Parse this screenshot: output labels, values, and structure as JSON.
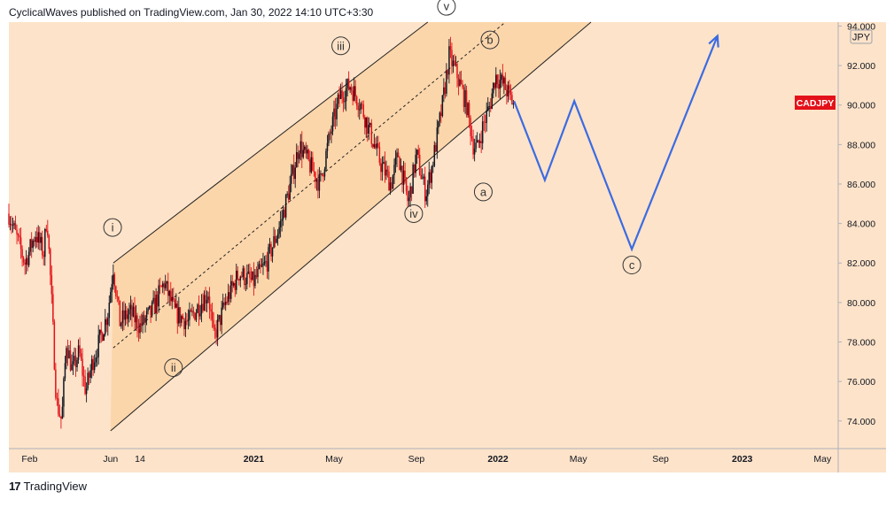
{
  "header": {
    "attribution": "CyclicalWaves published on TradingView.com, Jan 30, 2022 14:10 UTC+3:30"
  },
  "footer": {
    "brand": "TradingView",
    "logo_icon": "tradingview-logo-icon"
  },
  "colors": {
    "background": "#fde3c9",
    "channel_fill": "#fbd3a6",
    "up_candle": "#131722",
    "down_candle": "#e3121a",
    "projection": "#3b6be3",
    "symbol_badge": "#e3121a"
  },
  "chart_data": {
    "type": "candlestick",
    "symbol": "CADJPY",
    "currency": "JPY",
    "y_axis": {
      "ylim": [
        72.6,
        94.2
      ],
      "ticks": [
        "74.000",
        "76.000",
        "78.000",
        "80.000",
        "82.000",
        "84.000",
        "86.000",
        "88.000",
        "90.000",
        "92.000",
        "94.000"
      ]
    },
    "x_axis": {
      "ticks": [
        "Feb",
        "Jun",
        "14",
        "2021",
        "May",
        "Sep",
        "2022",
        "May",
        "Sep",
        "2023",
        "May"
      ]
    },
    "last_price": 90.0,
    "price_path": [
      {
        "date": "2020-01-01",
        "price": 84.5
      },
      {
        "date": "2020-01-25",
        "price": 82.0
      },
      {
        "date": "2020-02-10",
        "price": 83.5
      },
      {
        "date": "2020-02-22",
        "price": 82.5
      },
      {
        "date": "2020-02-27",
        "price": 84.5
      },
      {
        "date": "2020-03-05",
        "price": 80.0
      },
      {
        "date": "2020-03-12",
        "price": 75.0
      },
      {
        "date": "2020-03-20",
        "price": 74.0
      },
      {
        "date": "2020-03-27",
        "price": 78.0
      },
      {
        "date": "2020-04-05",
        "price": 76.5
      },
      {
        "date": "2020-04-15",
        "price": 77.5
      },
      {
        "date": "2020-04-25",
        "price": 75.5
      },
      {
        "date": "2020-05-05",
        "price": 77.0
      },
      {
        "date": "2020-05-15",
        "price": 78.0
      },
      {
        "date": "2020-05-28",
        "price": 79.5
      },
      {
        "date": "2020-06-05",
        "price": 81.8
      },
      {
        "date": "2020-06-15",
        "price": 79.0
      },
      {
        "date": "2020-06-30",
        "price": 79.5
      },
      {
        "date": "2020-07-15",
        "price": 78.8
      },
      {
        "date": "2020-08-01",
        "price": 79.5
      },
      {
        "date": "2020-08-20",
        "price": 81.0
      },
      {
        "date": "2020-09-05",
        "price": 79.5
      },
      {
        "date": "2020-09-25",
        "price": 79.0
      },
      {
        "date": "2020-10-10",
        "price": 79.8
      },
      {
        "date": "2020-10-25",
        "price": 80.5
      },
      {
        "date": "2020-11-02",
        "price": 78.2
      },
      {
        "date": "2020-11-20",
        "price": 80.0
      },
      {
        "date": "2020-12-10",
        "price": 81.5
      },
      {
        "date": "2020-12-31",
        "price": 81.0
      },
      {
        "date": "2021-01-20",
        "price": 82.0
      },
      {
        "date": "2021-02-10",
        "price": 84.0
      },
      {
        "date": "2021-02-25",
        "price": 86.0
      },
      {
        "date": "2021-03-10",
        "price": 88.0
      },
      {
        "date": "2021-03-25",
        "price": 87.0
      },
      {
        "date": "2021-04-10",
        "price": 86.0
      },
      {
        "date": "2021-04-25",
        "price": 88.5
      },
      {
        "date": "2021-05-10",
        "price": 90.5
      },
      {
        "date": "2021-05-25",
        "price": 91.0
      },
      {
        "date": "2021-06-10",
        "price": 90.0
      },
      {
        "date": "2021-06-25",
        "price": 88.5
      },
      {
        "date": "2021-07-10",
        "price": 87.0
      },
      {
        "date": "2021-07-25",
        "price": 86.0
      },
      {
        "date": "2021-08-05",
        "price": 87.5
      },
      {
        "date": "2021-08-20",
        "price": 85.0
      },
      {
        "date": "2021-09-01",
        "price": 87.5
      },
      {
        "date": "2021-09-15",
        "price": 85.5
      },
      {
        "date": "2021-09-25",
        "price": 87.0
      },
      {
        "date": "2021-10-10",
        "price": 90.0
      },
      {
        "date": "2021-10-20",
        "price": 92.5
      },
      {
        "date": "2021-11-01",
        "price": 91.5
      },
      {
        "date": "2021-11-15",
        "price": 90.0
      },
      {
        "date": "2021-11-25",
        "price": 88.0
      },
      {
        "date": "2021-12-01",
        "price": 87.8
      },
      {
        "date": "2021-12-10",
        "price": 89.0
      },
      {
        "date": "2021-12-20",
        "price": 90.0
      },
      {
        "date": "2021-12-28",
        "price": 91.5
      },
      {
        "date": "2022-01-10",
        "price": 91.0
      },
      {
        "date": "2022-01-25",
        "price": 90.0
      }
    ],
    "channel": {
      "lower": [
        {
          "date": "2020-06-01",
          "price": 73.5
        },
        {
          "date": "2022-05-20",
          "price": 94.2
        }
      ],
      "upper": [
        {
          "date": "2020-06-05",
          "price": 82.0
        },
        {
          "date": "2021-09-18",
          "price": 94.2
        }
      ],
      "mid": [
        {
          "date": "2020-06-05",
          "price": 77.7
        },
        {
          "date": "2022-01-12",
          "price": 94.2
        }
      ]
    },
    "projection": [
      {
        "date": "2022-01-25",
        "price": 90.2
      },
      {
        "date": "2022-03-12",
        "price": 86.2
      },
      {
        "date": "2022-04-25",
        "price": 90.2
      },
      {
        "date": "2022-07-20",
        "price": 82.7
      },
      {
        "date": "2022-11-25",
        "price": 93.5
      }
    ],
    "annotations": [
      {
        "label": "i",
        "date": "2020-06-04",
        "price": 83.8
      },
      {
        "label": "ii",
        "date": "2020-09-03",
        "price": 76.7
      },
      {
        "label": "iii",
        "date": "2021-05-11",
        "price": 93.0
      },
      {
        "label": "iv",
        "date": "2021-08-28",
        "price": 84.5
      },
      {
        "label": "v",
        "date": "2021-10-16",
        "price": 95.0
      },
      {
        "label": "b",
        "date": "2021-12-20",
        "price": 93.3
      },
      {
        "label": "a",
        "date": "2021-12-10",
        "price": 85.6
      },
      {
        "label": "c",
        "date": "2022-07-20",
        "price": 81.9
      }
    ]
  }
}
